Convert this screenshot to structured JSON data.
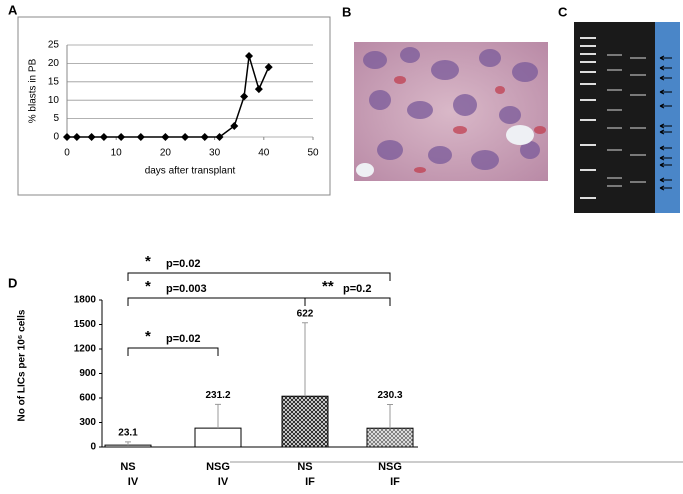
{
  "chart_data": [
    {
      "type": "line",
      "panel": "A",
      "x": [
        0,
        2,
        5,
        7.5,
        11,
        15,
        20,
        24,
        28,
        31,
        34,
        36,
        37,
        39,
        41
      ],
      "y": [
        0,
        0,
        0,
        0,
        0,
        0,
        0,
        0,
        0,
        0,
        3,
        11,
        22,
        13,
        19
      ],
      "xlim": [
        0,
        50
      ],
      "xticks": [
        0,
        10,
        20,
        30,
        40,
        50
      ],
      "ylim": [
        0,
        25
      ],
      "yticks": [
        0,
        5,
        10,
        15,
        20,
        25
      ],
      "xlabel": "days after transplant",
      "ylabel": "% blasts in PB",
      "color": "#000000",
      "grid": true
    },
    {
      "type": "bar",
      "panel": "D",
      "categories": [
        [
          "NS",
          "IV"
        ],
        [
          "NSG",
          "IV"
        ],
        [
          "NS",
          "IF"
        ],
        [
          "NSG",
          "IF"
        ]
      ],
      "values": [
        23.1,
        231.2,
        622,
        230.3
      ],
      "errors": [
        40,
        290,
        900,
        290
      ],
      "colors": [
        "#ffffff",
        "#ffffff",
        "#222222",
        "#777777"
      ],
      "hatch": [
        false,
        false,
        true,
        true
      ],
      "ylim": [
        0,
        1800
      ],
      "yticks": [
        0,
        300,
        600,
        900,
        1200,
        1500,
        1800
      ],
      "ylabel": "No of LICs per 10⁶ cells",
      "annotations": [
        {
          "from": 0,
          "to": 1,
          "stars": "*",
          "text": "p=0.02"
        },
        {
          "from": 0,
          "to": 2,
          "stars": "*",
          "text": "p=0.003"
        },
        {
          "from": 2,
          "to": 3,
          "stars": "**",
          "text": "p=0.2"
        },
        {
          "from": 0,
          "to": 3,
          "stars": "*",
          "text": "p=0.02"
        }
      ]
    }
  ],
  "images": [
    {
      "panel": "B"
    },
    {
      "panel": "C"
    }
  ]
}
